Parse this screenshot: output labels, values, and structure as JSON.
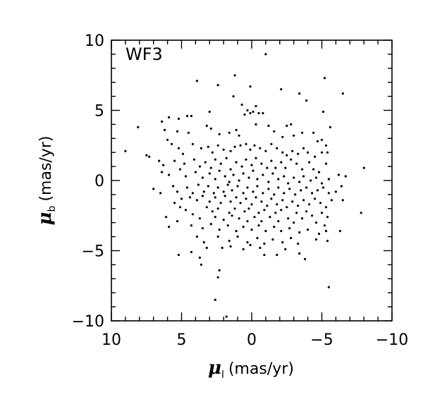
{
  "chart_data": {
    "type": "scatter",
    "title": "",
    "annotation": "WF3",
    "xlabel": {
      "symbol": "μ",
      "subscript": "l",
      "unit": "(mas/yr)"
    },
    "ylabel": {
      "symbol": "μ",
      "subscript": "b",
      "unit": "(mas/yr)"
    },
    "xlim": [
      10,
      -10
    ],
    "ylim": [
      -10,
      10
    ],
    "x_axis_reversed": true,
    "grid": false,
    "legend": "none",
    "marker_color": "#000000",
    "xticks": [
      "10",
      "5",
      "0",
      "−5",
      "−10"
    ],
    "yticks": [
      "10",
      "5",
      "0",
      "−5",
      "−10"
    ],
    "points": [
      [
        -1.0,
        9.0
      ],
      [
        3.9,
        7.1
      ],
      [
        2.4,
        6.8
      ],
      [
        1.2,
        7.5
      ],
      [
        0.1,
        6.7
      ],
      [
        -3.4,
        6.2
      ],
      [
        -3.9,
        5.7
      ],
      [
        -5.2,
        7.3
      ],
      [
        -6.5,
        6.2
      ],
      [
        -2.1,
        6.5
      ],
      [
        -0.3,
        5.3
      ],
      [
        0.7,
        5.4
      ],
      [
        1.3,
        6.0
      ],
      [
        0.3,
        5.0
      ],
      [
        0.1,
        4.8
      ],
      [
        -0.1,
        4.9
      ],
      [
        0.5,
        4.7
      ],
      [
        -0.5,
        4.8
      ],
      [
        -0.8,
        4.8
      ],
      [
        3.0,
        4.9
      ],
      [
        4.3,
        4.6
      ],
      [
        4.6,
        4.6
      ],
      [
        5.2,
        4.4
      ],
      [
        5.9,
        4.5
      ],
      [
        6.4,
        4.2
      ],
      [
        -5.1,
        4.9
      ],
      [
        -5.6,
        3.8
      ],
      [
        -2.8,
        4.0
      ],
      [
        -2.5,
        3.9
      ],
      [
        -2.2,
        3.1
      ],
      [
        3.2,
        3.9
      ],
      [
        2.9,
        3.7
      ],
      [
        2.3,
        3.3
      ],
      [
        1.1,
        3.6
      ],
      [
        0.9,
        3.2
      ],
      [
        1.6,
        3.4
      ],
      [
        8.1,
        3.8
      ],
      [
        6.2,
        3.6
      ],
      [
        5.3,
        3.5
      ],
      [
        4.5,
        3.4
      ],
      [
        -0.3,
        4.0
      ],
      [
        -1.2,
        3.9
      ],
      [
        -1.6,
        3.5
      ],
      [
        -3.0,
        3.2
      ],
      [
        -3.6,
        3.4
      ],
      [
        -4.4,
        3.4
      ],
      [
        -4.7,
        2.8
      ],
      [
        -5.0,
        2.9
      ],
      [
        -5.3,
        2.5
      ],
      [
        6.0,
        2.9
      ],
      [
        5.7,
        2.6
      ],
      [
        5.2,
        2.3
      ],
      [
        4.9,
        1.9
      ],
      [
        4.2,
        2.6
      ],
      [
        3.6,
        2.3
      ],
      [
        3.1,
        2.4
      ],
      [
        2.8,
        2.0
      ],
      [
        2.4,
        2.5
      ],
      [
        2.0,
        2.2
      ],
      [
        1.5,
        2.1
      ],
      [
        1.2,
        2.4
      ],
      [
        0.8,
        2.5
      ],
      [
        0.4,
        2.6
      ],
      [
        0.1,
        2.2
      ],
      [
        -0.2,
        2.5
      ],
      [
        -0.6,
        2.3
      ],
      [
        -1.0,
        2.1
      ],
      [
        -1.4,
        2.6
      ],
      [
        -1.8,
        2.3
      ],
      [
        -2.2,
        2.0
      ],
      [
        -2.5,
        1.8
      ],
      [
        -2.9,
        2.1
      ],
      [
        -3.3,
        1.9
      ],
      [
        -3.7,
        2.3
      ],
      [
        -4.0,
        2.0
      ],
      [
        -4.5,
        1.7
      ],
      [
        -5.0,
        2.0
      ],
      [
        -5.4,
        2.0
      ],
      [
        9.0,
        2.1
      ],
      [
        7.5,
        1.8
      ],
      [
        7.3,
        1.7
      ],
      [
        6.6,
        1.4
      ],
      [
        6.3,
        1.1
      ],
      [
        5.5,
        1.4
      ],
      [
        4.8,
        1.2
      ],
      [
        4.1,
        1.5
      ],
      [
        3.7,
        1.0
      ],
      [
        3.3,
        1.3
      ],
      [
        2.9,
        0.9
      ],
      [
        2.6,
        1.5
      ],
      [
        2.2,
        1.2
      ],
      [
        1.8,
        1.6
      ],
      [
        1.5,
        0.8
      ],
      [
        1.1,
        1.3
      ],
      [
        0.7,
        1.0
      ],
      [
        0.4,
        1.5
      ],
      [
        0.0,
        1.1
      ],
      [
        -0.3,
        1.6
      ],
      [
        -0.7,
        1.2
      ],
      [
        -1.1,
        0.9
      ],
      [
        -1.4,
        1.4
      ],
      [
        -1.7,
        0.9
      ],
      [
        -2.1,
        1.3
      ],
      [
        -2.4,
        0.9
      ],
      [
        -2.8,
        1.5
      ],
      [
        -3.2,
        1.2
      ],
      [
        -3.6,
        0.8
      ],
      [
        -4.1,
        1.3
      ],
      [
        -4.4,
        0.8
      ],
      [
        -4.8,
        0.6
      ],
      [
        -5.3,
        1.2
      ],
      [
        6.4,
        0.6
      ],
      [
        5.9,
        0.4
      ],
      [
        5.1,
        0.8
      ],
      [
        4.7,
        0.3
      ],
      [
        4.0,
        0.6
      ],
      [
        3.5,
        0.2
      ],
      [
        3.0,
        0.5
      ],
      [
        2.6,
        0.1
      ],
      [
        2.3,
        0.7
      ],
      [
        1.9,
        0.3
      ],
      [
        1.6,
        -0.1
      ],
      [
        1.3,
        0.4
      ],
      [
        0.9,
        0.0
      ],
      [
        0.6,
        0.5
      ],
      [
        0.2,
        0.2
      ],
      [
        -0.1,
        0.7
      ],
      [
        -0.4,
        0.1
      ],
      [
        -0.8,
        0.4
      ],
      [
        -1.2,
        -0.1
      ],
      [
        -1.5,
        0.5
      ],
      [
        -1.9,
        0.1
      ],
      [
        -2.3,
        0.3
      ],
      [
        -2.6,
        -0.2
      ],
      [
        -3.0,
        0.2
      ],
      [
        -3.4,
        -0.1
      ],
      [
        -3.7,
        0.3
      ],
      [
        -4.2,
        0.0
      ],
      [
        -4.6,
        0.2
      ],
      [
        -5.0,
        -0.2
      ],
      [
        -5.5,
        0.1
      ],
      [
        -6.2,
        0.4
      ],
      [
        -6.7,
        0.3
      ],
      [
        -8.0,
        0.9
      ],
      [
        7.0,
        -0.6
      ],
      [
        6.5,
        -0.9
      ],
      [
        5.6,
        -0.4
      ],
      [
        5.3,
        -0.8
      ],
      [
        4.6,
        -0.5
      ],
      [
        4.2,
        -0.9
      ],
      [
        3.8,
        -0.3
      ],
      [
        3.4,
        -0.8
      ],
      [
        3.1,
        -0.4
      ],
      [
        2.7,
        -0.9
      ],
      [
        2.4,
        -0.5
      ],
      [
        2.0,
        -0.8
      ],
      [
        1.7,
        -0.3
      ],
      [
        1.4,
        -0.7
      ],
      [
        1.0,
        -0.4
      ],
      [
        0.6,
        -0.9
      ],
      [
        0.3,
        -0.5
      ],
      [
        -0.1,
        -0.8
      ],
      [
        -0.4,
        -0.4
      ],
      [
        -0.8,
        -0.9
      ],
      [
        -1.2,
        -0.6
      ],
      [
        -1.6,
        -1.0
      ],
      [
        -1.9,
        -0.5
      ],
      [
        -2.3,
        -0.9
      ],
      [
        -2.7,
        -0.6
      ],
      [
        -3.1,
        -1.0
      ],
      [
        -3.5,
        -0.7
      ],
      [
        -3.9,
        -0.5
      ],
      [
        -4.3,
        -0.9
      ],
      [
        -4.7,
        -0.7
      ],
      [
        -5.1,
        -0.5
      ],
      [
        -5.5,
        -0.9
      ],
      [
        -6.0,
        -0.8
      ],
      [
        -6.4,
        -0.4
      ],
      [
        5.0,
        -1.3
      ],
      [
        4.4,
        -1.2
      ],
      [
        3.9,
        -1.4
      ],
      [
        3.5,
        -1.1
      ],
      [
        3.0,
        -1.5
      ],
      [
        2.6,
        -1.2
      ],
      [
        2.2,
        -1.6
      ],
      [
        1.9,
        -1.1
      ],
      [
        1.5,
        -1.5
      ],
      [
        1.1,
        -1.2
      ],
      [
        0.8,
        -1.6
      ],
      [
        0.4,
        -1.3
      ],
      [
        0.0,
        -1.7
      ],
      [
        -0.3,
        -1.2
      ],
      [
        -0.7,
        -1.5
      ],
      [
        -1.1,
        -1.8
      ],
      [
        -1.4,
        -1.3
      ],
      [
        -1.8,
        -1.7
      ],
      [
        -2.2,
        -1.4
      ],
      [
        -2.5,
        -1.9
      ],
      [
        -2.9,
        -1.5
      ],
      [
        -3.3,
        -1.8
      ],
      [
        -3.7,
        -1.4
      ],
      [
        -4.1,
        -1.7
      ],
      [
        -4.5,
        -1.3
      ],
      [
        -4.9,
        -1.6
      ],
      [
        -5.3,
        -1.9
      ],
      [
        -5.7,
        -1.4
      ],
      [
        -6.5,
        -1.4
      ],
      [
        5.5,
        -1.6
      ],
      [
        5.1,
        -1.9
      ],
      [
        4.7,
        -2.1
      ],
      [
        3.2,
        -1.9
      ],
      [
        2.8,
        -2.2
      ],
      [
        2.4,
        -2.0
      ],
      [
        1.6,
        -2.3
      ],
      [
        1.2,
        -2.0
      ],
      [
        0.5,
        -2.2
      ],
      [
        0.2,
        -2.0
      ],
      [
        -0.5,
        -2.3
      ],
      [
        -0.9,
        -2.1
      ],
      [
        -1.7,
        -2.3
      ],
      [
        -2.1,
        -2.1
      ],
      [
        -3.2,
        -2.3
      ],
      [
        -3.9,
        -2.2
      ],
      [
        -4.3,
        -2.5
      ],
      [
        -5.0,
        -2.3
      ],
      [
        -5.4,
        -2.6
      ],
      [
        -7.8,
        -2.3
      ],
      [
        6.1,
        -2.6
      ],
      [
        5.3,
        -2.9
      ],
      [
        4.2,
        -2.4
      ],
      [
        3.7,
        -2.7
      ],
      [
        2.6,
        -2.6
      ],
      [
        2.0,
        -2.8
      ],
      [
        1.4,
        -2.5
      ],
      [
        0.9,
        -2.7
      ],
      [
        0.3,
        -2.9
      ],
      [
        -0.2,
        -2.6
      ],
      [
        -0.7,
        -2.9
      ],
      [
        -1.3,
        -2.6
      ],
      [
        -1.9,
        -2.9
      ],
      [
        -2.6,
        -2.7
      ],
      [
        -3.0,
        -3.0
      ],
      [
        -3.6,
        -2.7
      ],
      [
        -4.6,
        -3.0
      ],
      [
        -5.2,
        -3.2
      ],
      [
        5.9,
        -3.3
      ],
      [
        4.3,
        -3.2
      ],
      [
        3.5,
        -3.4
      ],
      [
        2.9,
        -3.1
      ],
      [
        2.3,
        -3.5
      ],
      [
        1.7,
        -3.2
      ],
      [
        1.1,
        -3.6
      ],
      [
        0.6,
        -3.3
      ],
      [
        0.0,
        -3.5
      ],
      [
        -0.5,
        -3.2
      ],
      [
        -1.0,
        -3.6
      ],
      [
        -1.6,
        -3.3
      ],
      [
        -2.1,
        -3.6
      ],
      [
        -2.7,
        -3.4
      ],
      [
        -3.4,
        -3.7
      ],
      [
        -4.0,
        -3.5
      ],
      [
        -4.8,
        -3.8
      ],
      [
        -5.3,
        -3.6
      ],
      [
        -6.3,
        -3.6
      ],
      [
        3.9,
        -4.0
      ],
      [
        3.4,
        -4.4
      ],
      [
        2.4,
        -4.0
      ],
      [
        1.6,
        -4.3
      ],
      [
        1.0,
        -4.0
      ],
      [
        0.3,
        -4.4
      ],
      [
        -0.4,
        -4.1
      ],
      [
        -0.9,
        -4.5
      ],
      [
        -1.5,
        -4.2
      ],
      [
        -2.2,
        -4.4
      ],
      [
        -2.8,
        -4.1
      ],
      [
        -3.3,
        -4.5
      ],
      [
        -4.6,
        -4.2
      ],
      [
        -5.4,
        -4.3
      ],
      [
        3.2,
        -4.8
      ],
      [
        2.1,
        -4.8
      ],
      [
        1.5,
        -4.7
      ],
      [
        0.6,
        -4.9
      ],
      [
        0.1,
        -4.6
      ],
      [
        -0.6,
        -4.8
      ],
      [
        -2.4,
        -4.9
      ],
      [
        -3.4,
        -5.2
      ],
      [
        5.2,
        -5.3
      ],
      [
        4.3,
        -5.1
      ],
      [
        3.7,
        -5.5
      ],
      [
        -0.9,
        -5.3
      ],
      [
        -1.8,
        -5.3
      ],
      [
        -3.8,
        -5.6
      ],
      [
        3.6,
        -6.0
      ],
      [
        2.3,
        -6.4
      ],
      [
        2.4,
        -6.9
      ],
      [
        -5.5,
        -7.6
      ],
      [
        2.6,
        -8.5
      ],
      [
        1.8,
        -9.7
      ]
    ]
  }
}
